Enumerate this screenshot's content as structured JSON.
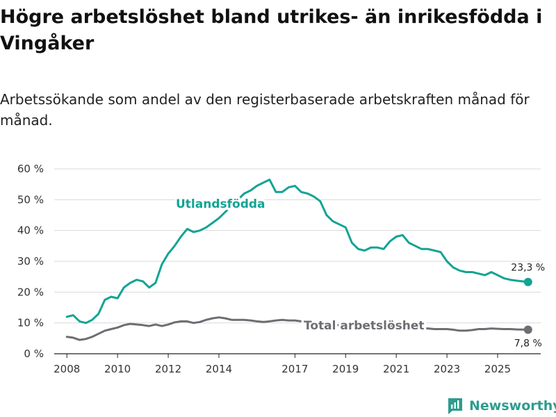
{
  "header": {
    "title": "Högre arbetslöshet bland utrikes- än inrikesfödda i Vingåker",
    "subtitle": "Arbetssökande som andel av den registerbaserade arbetskraften månad för månad."
  },
  "colors": {
    "foreign": "#13a394",
    "total": "#6d6e73",
    "grid": "#d9d9d9",
    "axis": "#222222",
    "brand": "#2e9c8f"
  },
  "chart_data": {
    "type": "line",
    "x_ticks": [
      "2008",
      "2010",
      "2012",
      "2014",
      "2017",
      "2019",
      "2021",
      "2023",
      "2025"
    ],
    "y_ticks": [
      "0 %",
      "10 %",
      "20 %",
      "30 %",
      "40 %",
      "50 %",
      "60 %"
    ],
    "ylim": [
      0,
      60
    ],
    "xlim": [
      2007.5,
      2026.7
    ],
    "grid": true,
    "series": [
      {
        "name": "Utlandsfödda",
        "color_key": "foreign",
        "end_value": 23.3,
        "end_label": "23,3 %",
        "points": [
          [
            2008.0,
            12.0
          ],
          [
            2008.25,
            12.5
          ],
          [
            2008.5,
            10.5
          ],
          [
            2008.75,
            10.0
          ],
          [
            2009.0,
            11.0
          ],
          [
            2009.25,
            13.0
          ],
          [
            2009.5,
            17.5
          ],
          [
            2009.75,
            18.5
          ],
          [
            2010.0,
            18.0
          ],
          [
            2010.25,
            21.5
          ],
          [
            2010.5,
            23.0
          ],
          [
            2010.75,
            24.0
          ],
          [
            2011.0,
            23.5
          ],
          [
            2011.25,
            21.5
          ],
          [
            2011.5,
            23.0
          ],
          [
            2011.75,
            29.0
          ],
          [
            2012.0,
            32.5
          ],
          [
            2012.25,
            35.0
          ],
          [
            2012.5,
            38.0
          ],
          [
            2012.75,
            40.5
          ],
          [
            2013.0,
            39.5
          ],
          [
            2013.25,
            40.0
          ],
          [
            2013.5,
            41.0
          ],
          [
            2013.75,
            42.5
          ],
          [
            2014.0,
            44.0
          ],
          [
            2014.25,
            46.0
          ],
          [
            2014.5,
            48.0
          ],
          [
            2014.75,
            50.0
          ],
          [
            2015.0,
            52.0
          ],
          [
            2015.25,
            53.0
          ],
          [
            2015.5,
            54.5
          ],
          [
            2015.75,
            55.5
          ],
          [
            2016.0,
            56.5
          ],
          [
            2016.25,
            52.5
          ],
          [
            2016.5,
            52.5
          ],
          [
            2016.75,
            54.0
          ],
          [
            2017.0,
            54.5
          ],
          [
            2017.25,
            52.5
          ],
          [
            2017.5,
            52.0
          ],
          [
            2017.75,
            51.0
          ],
          [
            2018.0,
            49.5
          ],
          [
            2018.25,
            45.0
          ],
          [
            2018.5,
            43.0
          ],
          [
            2018.75,
            42.0
          ],
          [
            2019.0,
            41.0
          ],
          [
            2019.25,
            36.0
          ],
          [
            2019.5,
            34.0
          ],
          [
            2019.75,
            33.5
          ],
          [
            2020.0,
            34.5
          ],
          [
            2020.25,
            34.5
          ],
          [
            2020.5,
            34.0
          ],
          [
            2020.75,
            36.5
          ],
          [
            2021.0,
            38.0
          ],
          [
            2021.25,
            38.5
          ],
          [
            2021.5,
            36.0
          ],
          [
            2021.75,
            35.0
          ],
          [
            2022.0,
            34.0
          ],
          [
            2022.25,
            34.0
          ],
          [
            2022.5,
            33.5
          ],
          [
            2022.75,
            33.0
          ],
          [
            2023.0,
            30.0
          ],
          [
            2023.25,
            28.0
          ],
          [
            2023.5,
            27.0
          ],
          [
            2023.75,
            26.5
          ],
          [
            2024.0,
            26.5
          ],
          [
            2024.25,
            26.0
          ],
          [
            2024.5,
            25.5
          ],
          [
            2024.75,
            26.5
          ],
          [
            2025.0,
            25.5
          ],
          [
            2025.25,
            24.5
          ],
          [
            2025.5,
            24.0
          ],
          [
            2025.75,
            23.7
          ],
          [
            2026.2,
            23.3
          ]
        ]
      },
      {
        "name": "Total arbetslöshet",
        "color_key": "total",
        "end_value": 7.8,
        "end_label": "7,8 %",
        "points": [
          [
            2008.0,
            5.5
          ],
          [
            2008.25,
            5.2
          ],
          [
            2008.5,
            4.5
          ],
          [
            2008.75,
            4.8
          ],
          [
            2009.0,
            5.5
          ],
          [
            2009.25,
            6.5
          ],
          [
            2009.5,
            7.5
          ],
          [
            2009.75,
            8.0
          ],
          [
            2010.0,
            8.5
          ],
          [
            2010.25,
            9.3
          ],
          [
            2010.5,
            9.7
          ],
          [
            2010.75,
            9.5
          ],
          [
            2011.0,
            9.3
          ],
          [
            2011.25,
            9.0
          ],
          [
            2011.5,
            9.5
          ],
          [
            2011.75,
            9.0
          ],
          [
            2012.0,
            9.5
          ],
          [
            2012.25,
            10.2
          ],
          [
            2012.5,
            10.5
          ],
          [
            2012.75,
            10.5
          ],
          [
            2013.0,
            10.0
          ],
          [
            2013.25,
            10.3
          ],
          [
            2013.5,
            11.0
          ],
          [
            2013.75,
            11.5
          ],
          [
            2014.0,
            11.8
          ],
          [
            2014.25,
            11.5
          ],
          [
            2014.5,
            11.0
          ],
          [
            2014.75,
            11.0
          ],
          [
            2015.0,
            11.0
          ],
          [
            2015.25,
            10.8
          ],
          [
            2015.5,
            10.5
          ],
          [
            2015.75,
            10.3
          ],
          [
            2016.0,
            10.5
          ],
          [
            2016.25,
            10.8
          ],
          [
            2016.5,
            11.0
          ],
          [
            2016.75,
            10.8
          ],
          [
            2017.0,
            10.8
          ],
          [
            2017.25,
            10.5
          ],
          [
            2017.5,
            10.8
          ],
          [
            2017.75,
            10.5
          ],
          [
            2018.0,
            10.2
          ],
          [
            2018.25,
            10.0
          ],
          [
            2018.5,
            9.5
          ],
          [
            2018.75,
            9.2
          ],
          [
            2019.0,
            9.0
          ],
          [
            2019.25,
            8.8
          ],
          [
            2019.5,
            8.5
          ],
          [
            2019.75,
            8.8
          ],
          [
            2020.0,
            9.0
          ],
          [
            2020.25,
            9.2
          ],
          [
            2020.5,
            9.0
          ],
          [
            2020.75,
            8.8
          ],
          [
            2021.0,
            8.8
          ],
          [
            2021.25,
            8.5
          ],
          [
            2021.5,
            8.3
          ],
          [
            2021.75,
            8.2
          ],
          [
            2022.0,
            8.3
          ],
          [
            2022.25,
            8.2
          ],
          [
            2022.5,
            8.0
          ],
          [
            2022.75,
            8.0
          ],
          [
            2023.0,
            8.0
          ],
          [
            2023.25,
            7.8
          ],
          [
            2023.5,
            7.5
          ],
          [
            2023.75,
            7.5
          ],
          [
            2024.0,
            7.7
          ],
          [
            2024.25,
            8.0
          ],
          [
            2024.5,
            8.0
          ],
          [
            2024.75,
            8.2
          ],
          [
            2025.0,
            8.1
          ],
          [
            2025.25,
            8.0
          ],
          [
            2025.5,
            8.0
          ],
          [
            2025.75,
            7.9
          ],
          [
            2026.2,
            7.8
          ]
        ]
      }
    ]
  },
  "branding": {
    "name": "Newsworthy",
    "icon": "newsworthy-logo-icon"
  }
}
